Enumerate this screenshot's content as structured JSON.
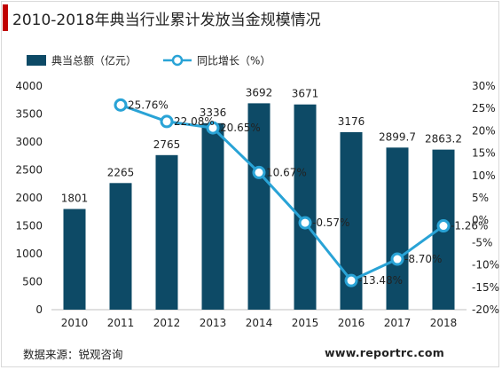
{
  "header": {
    "title": "2010-2018年典当行业累计发放当金规模情况"
  },
  "footer": {
    "source": "数据来源：锐观咨询",
    "website": "www.reportrc.com"
  },
  "colors": {
    "bar": "#0d4a66",
    "line": "#29a3d6",
    "accent": "#c00000"
  },
  "chart_data": {
    "type": "bar+line",
    "title": "2010-2018年典当行业累计发放当金规模情况",
    "categories": [
      "2010",
      "2011",
      "2012",
      "2013",
      "2014",
      "2015",
      "2016",
      "2017",
      "2018"
    ],
    "series": [
      {
        "name": "典当总额（亿元）",
        "type": "bar",
        "axis": "left",
        "values": [
          1801,
          2265,
          2765,
          3336,
          3692,
          3671,
          3176,
          2899.7,
          2863.2
        ],
        "labels": [
          "1801",
          "2265",
          "2765",
          "3336",
          "3692",
          "3671",
          "3176",
          "2899.7",
          "2863.2"
        ]
      },
      {
        "name": "同比增长（%）",
        "type": "line",
        "axis": "right",
        "values": [
          null,
          25.76,
          22.08,
          20.65,
          10.67,
          -0.57,
          -13.48,
          -8.7,
          -1.26
        ],
        "labels": [
          "",
          "25.76%",
          "22.08%",
          "20.65%",
          "10.67%",
          "-0.57%",
          "-13.48%",
          "-8.70%",
          "-1.26%"
        ]
      }
    ],
    "yleft": {
      "min": 0,
      "max": 4000,
      "step": 500,
      "ticks": [
        "0",
        "500",
        "1000",
        "1500",
        "2000",
        "2500",
        "3000",
        "3500",
        "4000"
      ]
    },
    "yright": {
      "min": -20,
      "max": 30,
      "step": 5,
      "ticks": [
        "-20%",
        "-15%",
        "-10%",
        "-5%",
        "0%",
        "5%",
        "10%",
        "15%",
        "20%",
        "25%",
        "30%"
      ]
    },
    "grid": false,
    "legend": "top-left"
  }
}
